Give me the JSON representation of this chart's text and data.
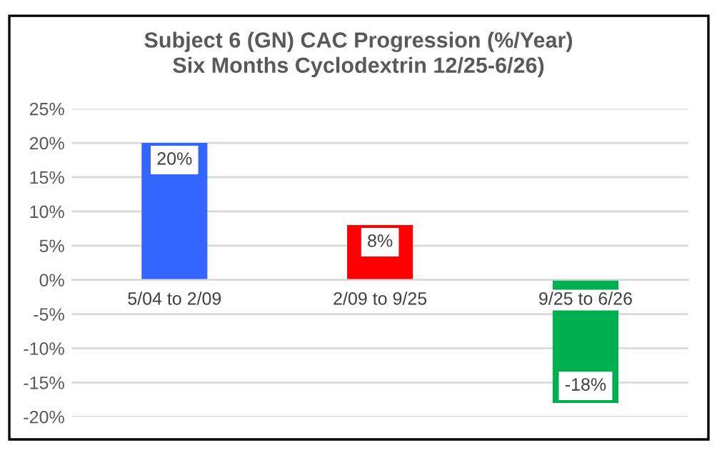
{
  "chart_data": {
    "type": "bar",
    "title": "Subject 6 (GN) CAC Progression (%/Year)\nSix Months Cyclodextrin 12/25-6/26)",
    "categories": [
      "5/04 to 2/09",
      "2/09 to 9/25",
      "9/25 to 6/26"
    ],
    "values": [
      20,
      8,
      -18
    ],
    "colors": [
      "#3366ff",
      "#ff0000",
      "#00b050"
    ],
    "value_labels": [
      "20%",
      "8%",
      "-18%"
    ],
    "ylim": [
      -20,
      25
    ],
    "yticks": [
      {
        "value": -20,
        "label": "-20%"
      },
      {
        "value": -15,
        "label": "-15%"
      },
      {
        "value": -10,
        "label": "-10%"
      },
      {
        "value": -5,
        "label": "-5%"
      },
      {
        "value": 0,
        "label": "0%"
      },
      {
        "value": 5,
        "label": "5%"
      },
      {
        "value": 10,
        "label": "10%"
      },
      {
        "value": 15,
        "label": "15%"
      },
      {
        "value": 20,
        "label": "20%"
      },
      {
        "value": 25,
        "label": "25%"
      }
    ],
    "grid": "y"
  }
}
